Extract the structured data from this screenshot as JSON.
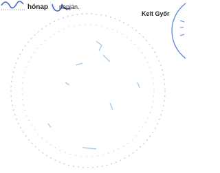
{
  "document": {
    "month_word": "hónap",
    "day_word": "napján.",
    "place": "Kelt Győr"
  }
}
